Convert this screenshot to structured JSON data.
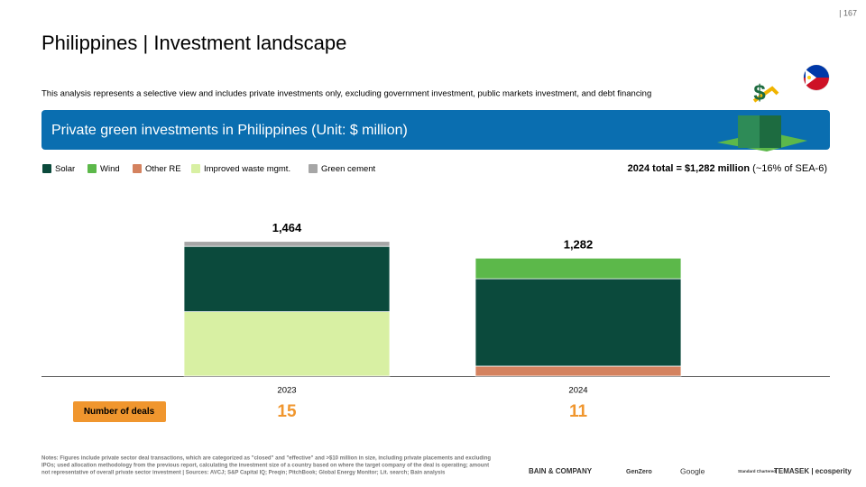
{
  "page_number": "| 167",
  "title": "Philippines | Investment landscape",
  "subtitle": "This analysis represents a selective view and includes private investments only, excluding government investment, public markets investment, and debt financing",
  "chart_data": {
    "type": "stacked-bar",
    "title": "Private green investments in Philippines",
    "unit": "(Unit: $ million)",
    "summary": {
      "bold": "2024 total = $1,282 million",
      "normal": "(~16% of SEA-6)"
    },
    "categories": [
      "2023",
      "2024"
    ],
    "series": [
      {
        "name": "Solar",
        "color": "#0b4a3c",
        "values": [
          710,
          950
        ]
      },
      {
        "name": "Wind",
        "color": "#5cb84a",
        "values": [
          null,
          224
        ]
      },
      {
        "name": "Other RE",
        "color": "#d4825f",
        "values": [
          null,
          108
        ]
      },
      {
        "name": "Improved waste mgmt.",
        "color": "#d8f0a3",
        "values": [
          700,
          null
        ]
      },
      {
        "name": "Green cement",
        "color": "#a6a6a6",
        "values": [
          54,
          null
        ]
      }
    ],
    "totals": {
      "values": [
        1464,
        1282
      ],
      "value_labels": [
        "1,464",
        "1,282"
      ]
    },
    "ylim": [
      0,
      1500
    ],
    "deals": {
      "label": "Number of deals",
      "values": [
        15,
        11
      ],
      "color": "#f0962e"
    }
  },
  "notes": [
    "Notes: Figures include private sector deal transactions, which are categorized as \"closed\" and \"effective\" and >$10 million in size, including private placements and excluding",
    "IPOs; used allocation methodology from the previous report, calculating the investment size of a country based on where the target company of the deal is operating; amount",
    "not representative of overall private sector investment | Sources: AVCJ; S&P Capital IQ; Preqin; PitchBook; Global Energy Monitor; Lit. search; Bain analysis"
  ],
  "logos": [
    "BAIN & COMPANY",
    "GenZero",
    "Google",
    "Standard Chartered",
    "TEMASEK | ecosperity"
  ]
}
